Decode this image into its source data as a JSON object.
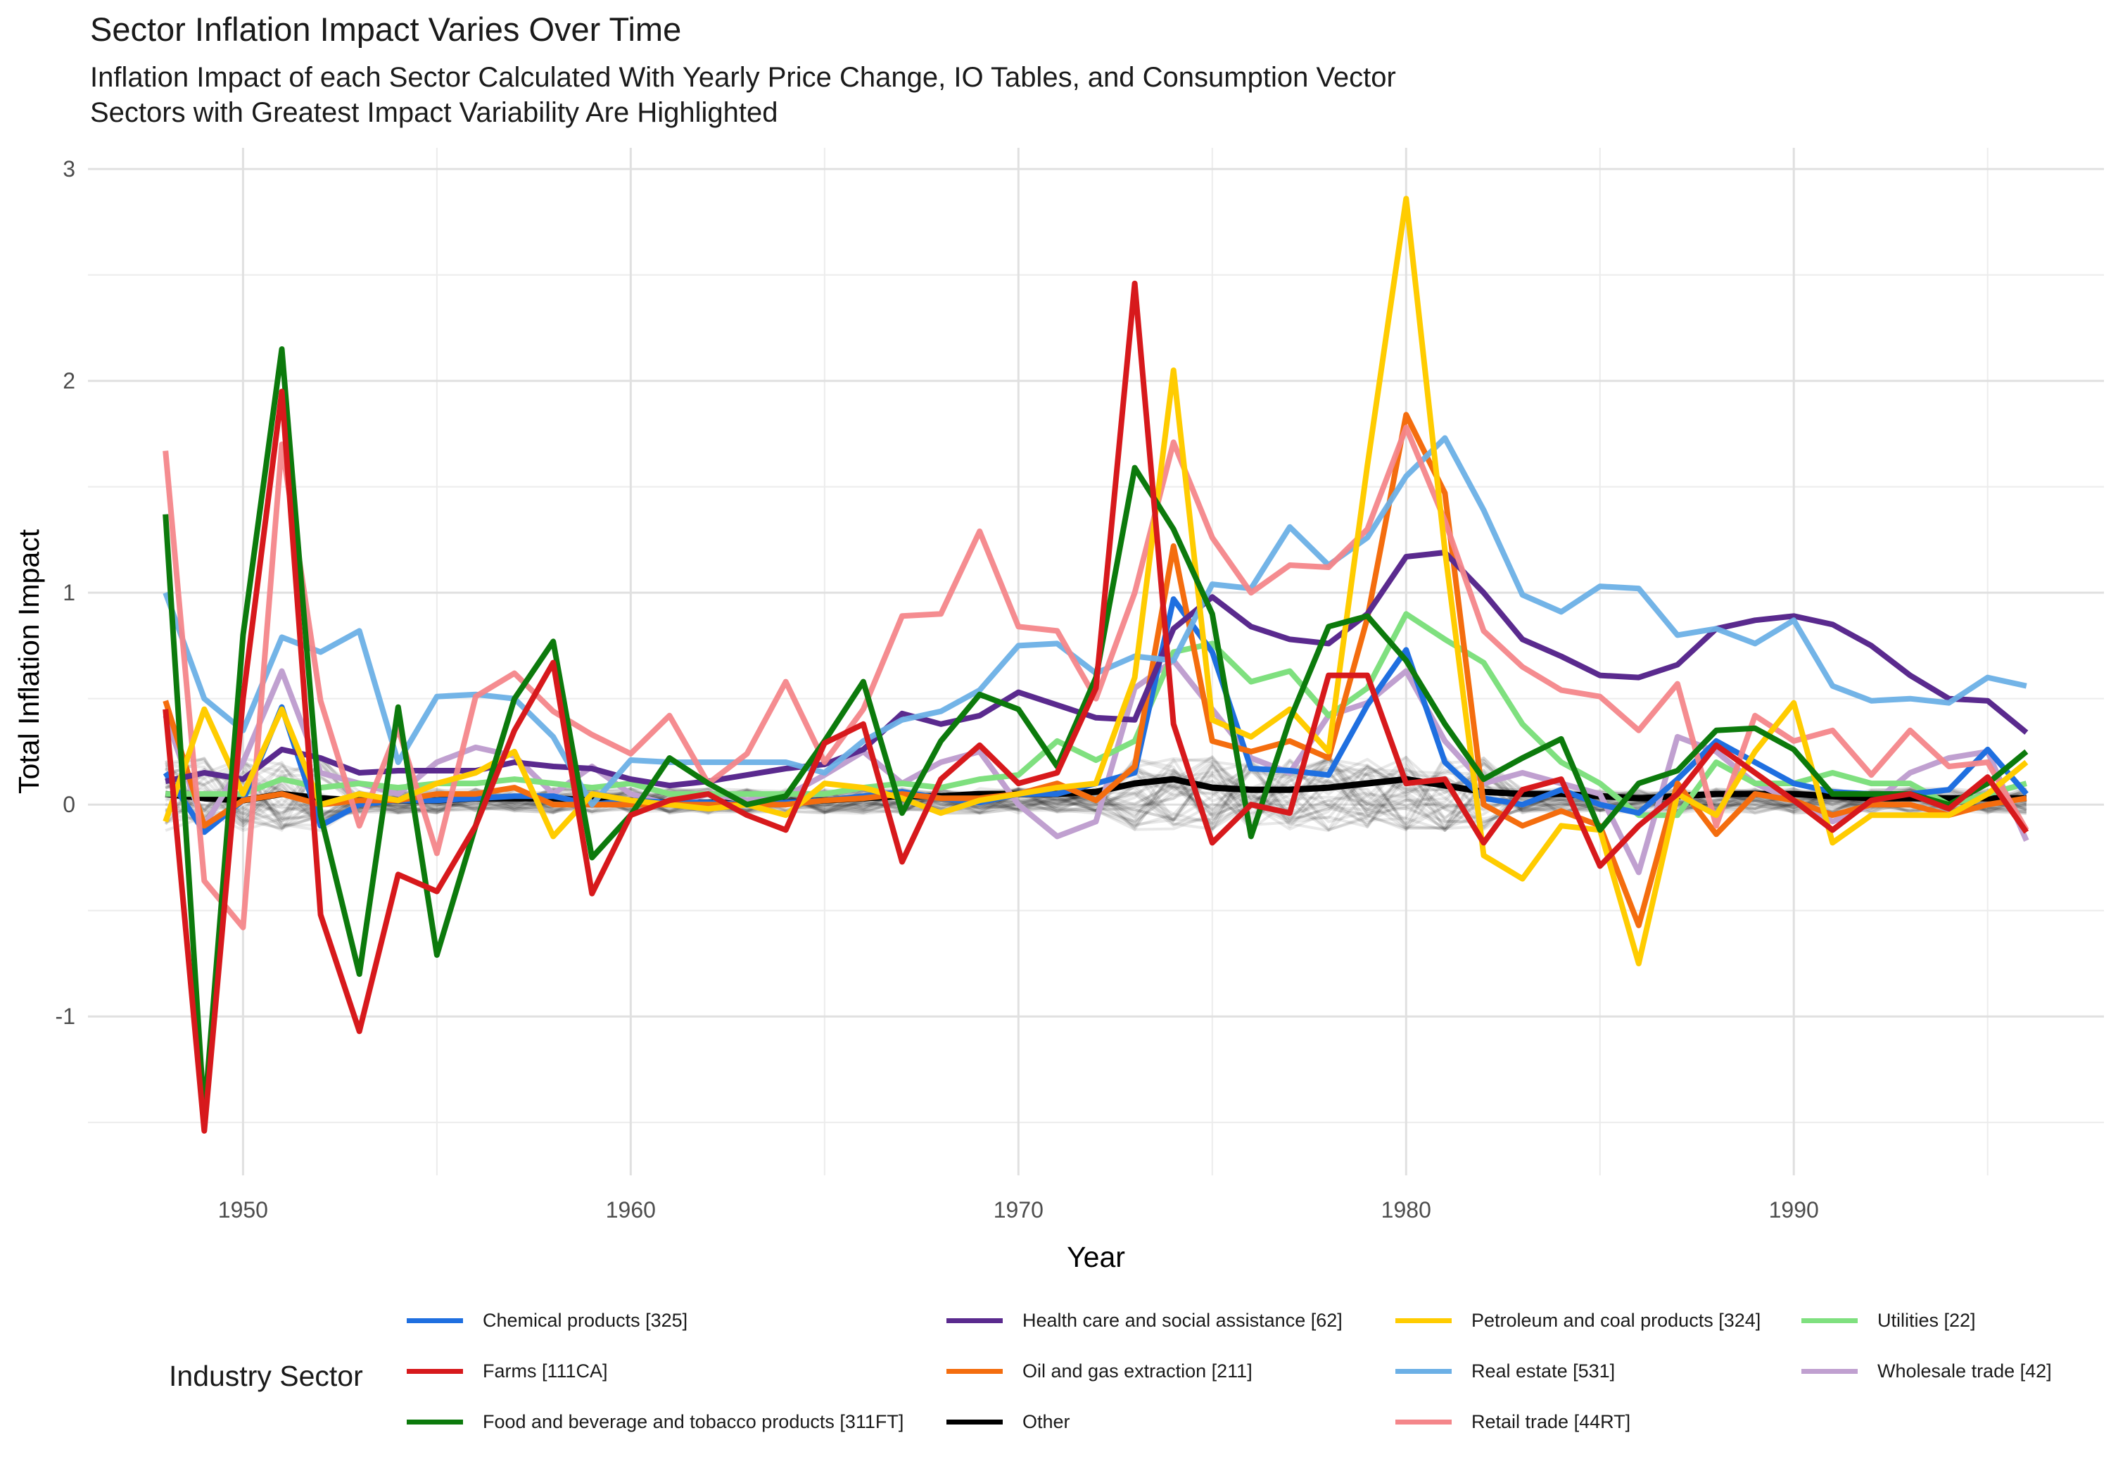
{
  "title": "Sector Inflation Impact Varies Over Time",
  "subtitle_line1": "Inflation Impact of each Sector Calculated With Yearly Price Change, IO Tables, and Consumption Vector",
  "subtitle_line2": "Sectors with Greatest Impact Variability Are Highlighted",
  "legend_title": "Industry Sector",
  "chart_data": {
    "type": "line",
    "title": "Sector Inflation Impact Varies Over Time",
    "xlabel": "Year",
    "ylabel": "Total Inflation Impact",
    "xlim": [
      1946,
      1998
    ],
    "ylim": [
      -1.75,
      3.1
    ],
    "x_ticks": [
      1950,
      1960,
      1970,
      1980,
      1990
    ],
    "y_ticks": [
      -1,
      0,
      1,
      2,
      3
    ],
    "grid": true,
    "legend_position": "bottom",
    "x": [
      1948,
      1949,
      1950,
      1951,
      1952,
      1953,
      1954,
      1955,
      1956,
      1957,
      1958,
      1959,
      1960,
      1961,
      1962,
      1963,
      1964,
      1965,
      1966,
      1967,
      1968,
      1969,
      1970,
      1971,
      1972,
      1973,
      1974,
      1975,
      1976,
      1977,
      1978,
      1979,
      1980,
      1981,
      1982,
      1983,
      1984,
      1985,
      1986,
      1987,
      1988,
      1989,
      1990,
      1991,
      1992,
      1993,
      1994,
      1995,
      1996
    ],
    "series": [
      {
        "name": "Chemical products [325]",
        "color": "#1f6fe0",
        "values": [
          0.15,
          -0.13,
          0.02,
          0.46,
          -0.1,
          0.0,
          0.02,
          0.02,
          0.03,
          0.04,
          0.04,
          0.0,
          0.02,
          0.01,
          0.01,
          0.0,
          0.01,
          0.02,
          0.04,
          0.06,
          0.03,
          0.01,
          0.05,
          0.05,
          0.1,
          0.15,
          0.97,
          0.72,
          0.17,
          0.16,
          0.14,
          0.47,
          0.73,
          0.2,
          0.03,
          0.0,
          0.07,
          0.0,
          -0.04,
          0.12,
          0.3,
          0.2,
          0.1,
          0.06,
          0.05,
          0.05,
          0.07,
          0.26,
          0.05
        ]
      },
      {
        "name": "Farms [111CA]",
        "color": "#d7191c",
        "values": [
          0.45,
          -1.54,
          0.5,
          1.95,
          -0.52,
          -1.07,
          -0.33,
          -0.41,
          -0.1,
          0.35,
          0.67,
          -0.42,
          -0.05,
          0.02,
          0.05,
          -0.05,
          -0.12,
          0.29,
          0.38,
          -0.27,
          0.12,
          0.28,
          0.1,
          0.15,
          0.55,
          2.46,
          0.38,
          -0.18,
          0.0,
          -0.04,
          0.61,
          0.61,
          0.1,
          0.12,
          -0.18,
          0.07,
          0.12,
          -0.29,
          -0.1,
          0.05,
          0.28,
          0.15,
          0.02,
          -0.12,
          0.02,
          0.05,
          -0.02,
          0.13,
          -0.13
        ]
      },
      {
        "name": "Food and beverage and tobacco products [311FT]",
        "color": "#0c7a0c",
        "values": [
          1.37,
          -1.47,
          0.8,
          2.15,
          -0.05,
          -0.8,
          0.46,
          -0.71,
          -0.1,
          0.5,
          0.77,
          -0.25,
          -0.05,
          0.22,
          0.1,
          0.0,
          0.04,
          0.3,
          0.58,
          -0.04,
          0.3,
          0.52,
          0.45,
          0.18,
          0.6,
          1.59,
          1.3,
          0.9,
          -0.15,
          0.4,
          0.84,
          0.89,
          0.68,
          0.38,
          0.12,
          0.22,
          0.31,
          -0.12,
          0.1,
          0.16,
          0.35,
          0.36,
          0.26,
          0.05,
          0.05,
          0.05,
          0.0,
          0.1,
          0.25
        ]
      },
      {
        "name": "Health care and social assistance [62]",
        "color": "#5a2a8e",
        "values": [
          0.11,
          0.15,
          0.12,
          0.26,
          0.22,
          0.15,
          0.16,
          0.16,
          0.16,
          0.2,
          0.18,
          0.17,
          0.12,
          0.09,
          0.11,
          0.14,
          0.17,
          0.19,
          0.26,
          0.43,
          0.38,
          0.42,
          0.53,
          0.47,
          0.41,
          0.4,
          0.83,
          0.98,
          0.84,
          0.78,
          0.76,
          0.9,
          1.17,
          1.19,
          1.0,
          0.78,
          0.7,
          0.61,
          0.6,
          0.66,
          0.83,
          0.87,
          0.89,
          0.85,
          0.75,
          0.61,
          0.5,
          0.49,
          0.34
        ]
      },
      {
        "name": "Oil and gas extraction [211]",
        "color": "#f46d0e",
        "values": [
          0.49,
          -0.1,
          0.02,
          0.05,
          0.0,
          0.02,
          0.02,
          0.05,
          0.05,
          0.08,
          0.0,
          0.0,
          0.0,
          0.0,
          0.0,
          0.0,
          0.0,
          0.02,
          0.03,
          0.05,
          0.03,
          0.03,
          0.05,
          0.1,
          0.02,
          0.18,
          1.22,
          0.3,
          0.25,
          0.3,
          0.22,
          0.88,
          1.84,
          1.47,
          0.0,
          -0.1,
          -0.03,
          -0.1,
          -0.57,
          0.1,
          -0.14,
          0.05,
          0.02,
          -0.05,
          0.0,
          0.0,
          -0.05,
          0.0,
          0.03
        ]
      },
      {
        "name": "Other",
        "color": "#000000",
        "values": [
          0.05,
          0.03,
          0.02,
          0.05,
          0.03,
          0.02,
          0.02,
          0.02,
          0.03,
          0.03,
          0.03,
          0.02,
          0.02,
          0.01,
          0.01,
          0.01,
          0.01,
          0.02,
          0.03,
          0.04,
          0.04,
          0.05,
          0.05,
          0.05,
          0.06,
          0.1,
          0.12,
          0.08,
          0.07,
          0.07,
          0.08,
          0.1,
          0.12,
          0.09,
          0.06,
          0.05,
          0.05,
          0.04,
          0.03,
          0.04,
          0.05,
          0.05,
          0.05,
          0.04,
          0.03,
          0.03,
          0.03,
          0.03,
          0.03
        ]
      },
      {
        "name": "Petroleum and coal products [324]",
        "color": "#ffcc00",
        "values": [
          -0.08,
          0.45,
          0.05,
          0.45,
          0.0,
          0.05,
          0.02,
          0.1,
          0.15,
          0.25,
          -0.15,
          0.05,
          0.02,
          0.0,
          -0.02,
          0.0,
          -0.05,
          0.1,
          0.08,
          0.03,
          -0.04,
          0.02,
          0.05,
          0.08,
          0.1,
          0.6,
          2.05,
          0.4,
          0.32,
          0.45,
          0.25,
          1.6,
          2.86,
          1.2,
          -0.24,
          -0.35,
          -0.1,
          -0.12,
          -0.75,
          0.05,
          -0.05,
          0.25,
          0.48,
          -0.18,
          -0.05,
          -0.05,
          -0.05,
          0.05,
          0.2
        ]
      },
      {
        "name": "Real estate [531]",
        "color": "#6cb0e6",
        "values": [
          1.0,
          0.5,
          0.35,
          0.79,
          0.72,
          0.82,
          0.2,
          0.51,
          0.52,
          0.5,
          0.32,
          0.0,
          0.21,
          0.2,
          0.2,
          0.2,
          0.2,
          0.15,
          0.3,
          0.4,
          0.44,
          0.54,
          0.75,
          0.76,
          0.62,
          0.7,
          0.68,
          1.04,
          1.02,
          1.31,
          1.13,
          1.26,
          1.55,
          1.73,
          1.39,
          0.99,
          0.91,
          1.03,
          1.02,
          0.8,
          0.83,
          0.76,
          0.87,
          0.56,
          0.49,
          0.5,
          0.48,
          0.6,
          0.56
        ]
      },
      {
        "name": "Retail trade [44RT]",
        "color": "#f4868a",
        "values": [
          1.67,
          -0.36,
          -0.58,
          1.7,
          0.49,
          -0.1,
          0.36,
          -0.23,
          0.51,
          0.62,
          0.44,
          0.33,
          0.24,
          0.42,
          0.1,
          0.24,
          0.58,
          0.2,
          0.45,
          0.89,
          0.9,
          1.29,
          0.84,
          0.82,
          0.5,
          1.0,
          1.71,
          1.26,
          1.0,
          1.13,
          1.12,
          1.3,
          1.78,
          1.34,
          0.82,
          0.65,
          0.54,
          0.51,
          0.35,
          0.57,
          -0.1,
          0.42,
          0.3,
          0.35,
          0.14,
          0.35,
          0.18,
          0.2,
          -0.12
        ]
      },
      {
        "name": "Utilities [22]",
        "color": "#7fe07f",
        "values": [
          0.05,
          0.05,
          0.05,
          0.12,
          0.08,
          0.1,
          0.08,
          0.1,
          0.1,
          0.12,
          0.1,
          0.08,
          0.1,
          0.05,
          0.05,
          0.05,
          0.05,
          0.05,
          0.08,
          0.1,
          0.08,
          0.12,
          0.14,
          0.3,
          0.21,
          0.3,
          0.72,
          0.76,
          0.58,
          0.63,
          0.42,
          0.55,
          0.9,
          0.78,
          0.67,
          0.38,
          0.2,
          0.1,
          -0.05,
          -0.05,
          0.2,
          0.1,
          0.1,
          0.15,
          0.1,
          0.1,
          0.0,
          0.05,
          0.1
        ]
      },
      {
        "name": "Wholesale trade [42]",
        "color": "#c0a0d0",
        "values": [
          0.42,
          -0.1,
          0.2,
          0.63,
          0.15,
          0.1,
          0.05,
          0.2,
          0.27,
          0.23,
          0.05,
          0.18,
          0.05,
          0.0,
          0.05,
          0.02,
          0.04,
          0.14,
          0.25,
          0.1,
          0.2,
          0.25,
          0.0,
          -0.15,
          -0.08,
          0.55,
          0.68,
          0.45,
          0.22,
          0.15,
          0.42,
          0.48,
          0.63,
          0.3,
          0.1,
          0.15,
          0.1,
          0.05,
          -0.32,
          0.32,
          0.25,
          0.1,
          0.02,
          -0.08,
          0.0,
          0.15,
          0.22,
          0.25,
          -0.17
        ]
      }
    ],
    "background_lines_description_series": "grey translucent lines for remaining sectors, clustered near zero"
  }
}
